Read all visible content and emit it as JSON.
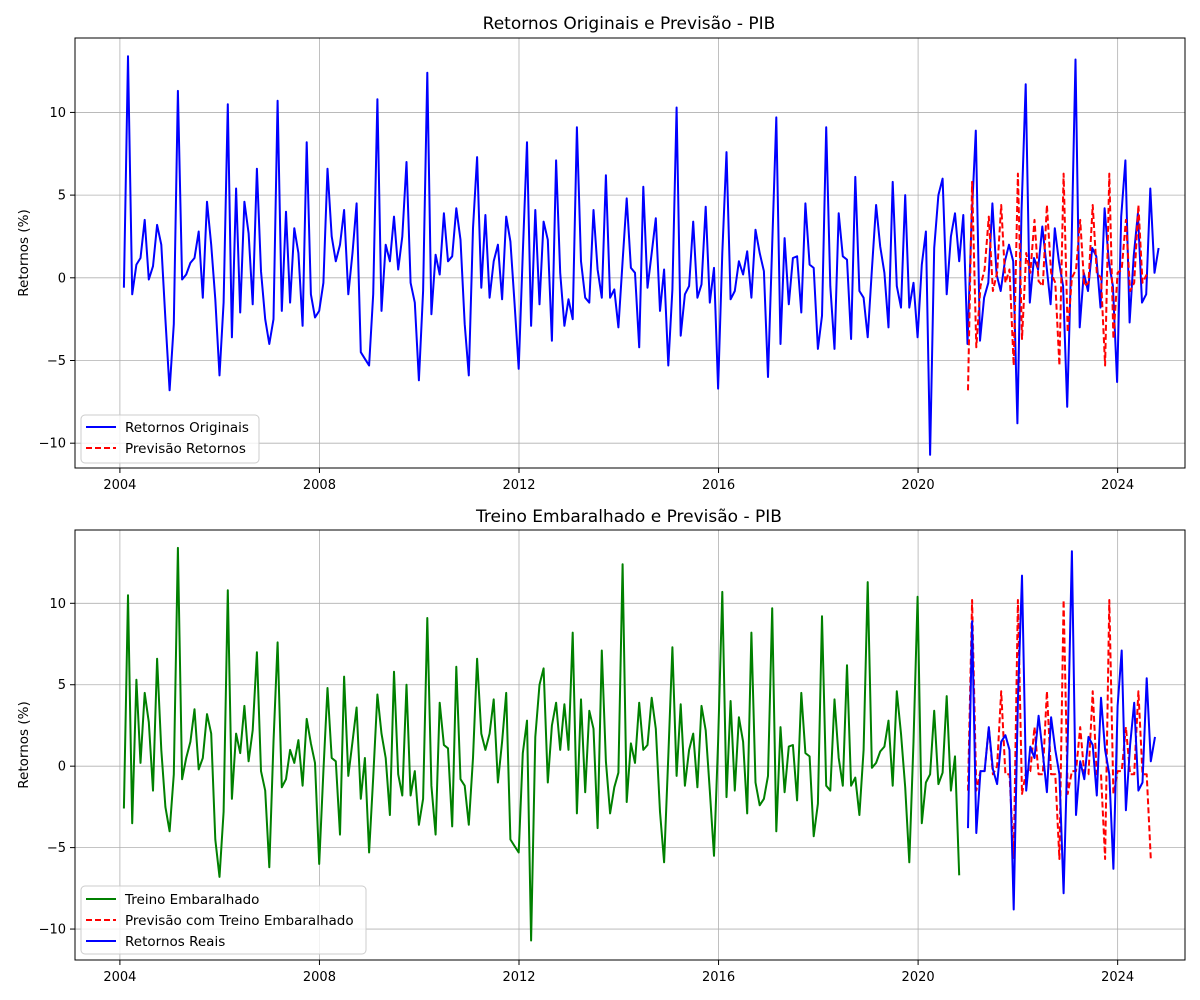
{
  "chart_data": [
    {
      "type": "line",
      "title": "Retornos Originais e Previsão - PIB",
      "xlabel": "",
      "ylabel": "Retornos (%)",
      "xlim": [
        2003.1,
        2025.35
      ],
      "ylim": [
        -11.5,
        14.5
      ],
      "x_ticks": [
        2004,
        2008,
        2012,
        2016,
        2020,
        2024
      ],
      "x_tick_labels": [
        "2004",
        "2008",
        "2012",
        "2016",
        "2020",
        "2024"
      ],
      "y_ticks": [
        -10,
        -5,
        0,
        5,
        10
      ],
      "y_tick_labels": [
        "−10",
        "−5",
        "0",
        "5",
        "10"
      ],
      "grid": true,
      "legend_position": "lower-left",
      "series": [
        {
          "name": "Retornos Originais",
          "color": "#0000ff",
          "style": "solid",
          "x_start": 2004.08,
          "x_step": 0.0833,
          "values": [
            -0.6,
            13.4,
            -1.0,
            0.8,
            1.2,
            3.5,
            -0.1,
            0.7,
            3.2,
            2.0,
            -2.5,
            -6.8,
            -2.8,
            11.3,
            -0.1,
            0.2,
            0.9,
            1.2,
            2.8,
            -1.2,
            4.6,
            2.0,
            -1.3,
            -5.9,
            -1.5,
            10.5,
            -3.6,
            5.4,
            -2.1,
            4.6,
            2.7,
            -1.6,
            6.6,
            0.4,
            -2.5,
            -4.0,
            -2.5,
            10.7,
            -2.0,
            4.0,
            -1.5,
            3.0,
            1.5,
            -2.9,
            8.2,
            -1.0,
            -2.4,
            -2.0,
            -0.3,
            6.6,
            2.5,
            1.0,
            2.0,
            4.1,
            -1.0,
            1.5,
            4.5,
            -4.5,
            -4.9,
            -5.3,
            -1.0,
            10.8,
            -2.0,
            2.0,
            1.0,
            3.7,
            0.5,
            2.5,
            7.0,
            -0.3,
            -1.5,
            -6.2,
            -0.8,
            12.4,
            -2.2,
            1.4,
            0.2,
            3.9,
            1.0,
            1.3,
            4.2,
            2.3,
            -2.8,
            -5.9,
            3.0,
            7.3,
            -0.6,
            3.8,
            -1.2,
            1.0,
            2.0,
            -1.3,
            3.7,
            2.2,
            -1.5,
            -5.5,
            1.5,
            8.2,
            -2.9,
            4.1,
            -1.6,
            3.4,
            2.3,
            -3.8,
            7.1,
            0.3,
            -2.9,
            -1.3,
            -2.5,
            9.1,
            1.0,
            -1.2,
            -1.5,
            4.1,
            0.5,
            -1.2,
            6.2,
            -1.2,
            -0.7,
            -3.0,
            1.0,
            4.8,
            0.6,
            0.3,
            -4.2,
            5.5,
            -0.6,
            1.5,
            3.6,
            -2.0,
            0.5,
            -5.3,
            -0.7,
            10.3,
            -3.5,
            -1.0,
            -0.5,
            3.4,
            -1.2,
            -0.4,
            4.3,
            -1.5,
            0.6,
            -6.7,
            1.5,
            7.6,
            -1.3,
            -0.8,
            1.0,
            0.2,
            1.6,
            -1.2,
            2.9,
            1.5,
            0.4,
            -6.0,
            2.0,
            9.7,
            -4.0,
            2.4,
            -1.6,
            1.2,
            1.3,
            -2.1,
            4.5,
            0.8,
            0.6,
            -4.3,
            -2.3,
            9.1,
            -0.5,
            -4.3,
            3.9,
            1.3,
            1.1,
            -3.7,
            6.1,
            -0.8,
            -1.2,
            -3.6,
            0.5,
            4.4,
            1.9,
            0.3,
            -3.0,
            5.8,
            -0.5,
            -1.8,
            5.0,
            -1.8,
            -0.3,
            -3.6,
            0.8,
            2.8,
            -10.7,
            1.8,
            5.0,
            6.0,
            -1.0,
            2.5,
            3.9,
            1.0,
            3.8,
            -4.0,
            3.5,
            8.9,
            -3.8,
            -1.2,
            -0.3,
            4.5,
            0.2,
            -0.8,
            1.0,
            2.0,
            1.0,
            -8.8,
            4.0,
            11.7,
            -1.5,
            1.2,
            0.5,
            3.1,
            0.8,
            -1.6,
            3.0,
            1.0,
            -0.5,
            -7.8,
            1.5,
            13.2,
            -3.0,
            0.3,
            -0.8,
            1.8,
            1.3,
            -1.8,
            4.2,
            1.0,
            -0.5,
            -6.3,
            3.7,
            7.1,
            -2.7,
            1.3,
            3.9,
            -1.5,
            -1.0,
            5.4,
            0.3,
            1.8
          ]
        },
        {
          "name": "Previsão Retornos",
          "color": "#ff0000",
          "style": "dashed",
          "x_start": 2021.0,
          "x_step": 0.0833,
          "values": [
            -6.8,
            5.8,
            -4.2,
            -0.5,
            0.5,
            3.7,
            -0.8,
            0.3,
            4.4,
            -0.3,
            0.5,
            -5.3,
            6.3,
            -3.7,
            1.5,
            0.3,
            3.5,
            -0.2,
            -0.5,
            4.4,
            0.3,
            -0.3,
            -5.3,
            6.3,
            -3.3,
            0.0,
            0.5,
            3.5,
            -0.5,
            -0.3,
            4.4,
            0.3,
            0.0,
            -5.3,
            6.3,
            -3.7,
            0.3,
            0.5,
            3.5,
            -0.8,
            -0.3,
            4.4,
            -0.3,
            0.2
          ]
        }
      ]
    },
    {
      "type": "line",
      "title": "Treino Embaralhado e Previsão - PIB",
      "xlabel": "",
      "ylabel": "Retornos (%)",
      "xlim": [
        2003.1,
        2025.35
      ],
      "ylim": [
        -11.9,
        14.5
      ],
      "x_ticks": [
        2004,
        2008,
        2012,
        2016,
        2020,
        2024
      ],
      "x_tick_labels": [
        "2004",
        "2008",
        "2012",
        "2016",
        "2020",
        "2024"
      ],
      "y_ticks": [
        -10,
        -5,
        0,
        5,
        10
      ],
      "y_tick_labels": [
        "−10",
        "−5",
        "0",
        "5",
        "10"
      ],
      "grid": true,
      "legend_position": "lower-left",
      "series": [
        {
          "name": "Treino Embaralhado",
          "color": "#008000",
          "style": "solid",
          "x_start": 2004.08,
          "x_step": 0.0833,
          "values": [
            -2.6,
            10.5,
            -3.5,
            5.3,
            0.2,
            4.5,
            2.7,
            -1.5,
            6.6,
            1.0,
            -2.5,
            -4.0,
            -0.5,
            13.4,
            -0.8,
            0.5,
            1.5,
            3.5,
            -0.2,
            0.5,
            3.2,
            2.0,
            -4.5,
            -6.8,
            -2.8,
            10.8,
            -2.0,
            2.0,
            0.8,
            3.7,
            0.3,
            2.2,
            7.0,
            -0.3,
            -1.5,
            -6.2,
            1.5,
            7.6,
            -1.3,
            -0.8,
            1.0,
            0.2,
            1.6,
            -1.2,
            2.9,
            1.4,
            0.2,
            -6.0,
            -0.3,
            4.8,
            0.5,
            0.3,
            -4.2,
            5.5,
            -0.6,
            1.5,
            3.6,
            -2.0,
            0.5,
            -5.3,
            -0.7,
            4.4,
            2.0,
            0.5,
            -3.0,
            5.8,
            -0.5,
            -1.8,
            5.0,
            -1.8,
            -0.3,
            -3.6,
            -2.0,
            9.1,
            -1.2,
            -4.2,
            3.9,
            1.3,
            1.1,
            -3.7,
            6.1,
            -0.8,
            -1.2,
            -3.6,
            0.5,
            6.6,
            2.0,
            1.0,
            2.0,
            4.1,
            -1.0,
            1.5,
            4.5,
            -4.5,
            -4.9,
            -5.3,
            0.8,
            2.8,
            -10.7,
            1.8,
            5.0,
            6.0,
            -1.0,
            2.5,
            3.9,
            1.0,
            3.8,
            1.0,
            8.2,
            -2.9,
            4.1,
            -1.6,
            3.4,
            2.3,
            -3.8,
            7.1,
            0.3,
            -2.9,
            -1.3,
            -0.4,
            12.4,
            -2.2,
            1.4,
            0.2,
            3.9,
            1.0,
            1.3,
            4.2,
            2.3,
            -2.8,
            -5.9,
            0.6,
            7.3,
            -0.6,
            3.8,
            -1.2,
            1.0,
            2.0,
            -1.3,
            3.7,
            2.2,
            -1.5,
            -5.5,
            1.5,
            10.7,
            -1.9,
            4.0,
            -1.5,
            3.0,
            1.5,
            -2.9,
            8.2,
            -1.0,
            -2.4,
            -2.0,
            -0.6,
            9.7,
            -4.0,
            2.4,
            -1.6,
            1.2,
            1.3,
            -2.1,
            4.5,
            0.8,
            0.6,
            -4.3,
            -2.3,
            9.2,
            -1.2,
            -1.5,
            4.1,
            0.5,
            -1.2,
            6.2,
            -1.2,
            -0.7,
            -3.0,
            1.0,
            11.3,
            -0.1,
            0.2,
            0.9,
            1.2,
            2.8,
            -1.2,
            4.6,
            2.0,
            -1.3,
            -5.9,
            1.5,
            10.4,
            -3.5,
            -1.0,
            -0.5,
            3.4,
            -1.1,
            -0.4,
            4.3,
            -1.5,
            0.6,
            -6.7
          ]
        },
        {
          "name": "Previsão com Treino Embaralhado",
          "color": "#ff0000",
          "style": "dashed",
          "x_start": 2021.0,
          "x_step": 0.0833,
          "values": [
            -1.5,
            10.2,
            -1.5,
            -0.3,
            -0.3,
            2.4,
            -0.5,
            0.0,
            4.6,
            -0.5,
            -0.5,
            -5.7,
            10.2,
            -1.7,
            -0.3,
            -0.3,
            2.4,
            -0.5,
            -0.5,
            4.6,
            -0.5,
            -0.5,
            -5.7,
            10.2,
            -1.7,
            -0.3,
            -0.3,
            2.4,
            -0.5,
            -0.5,
            4.6,
            -0.5,
            -0.5,
            -5.7,
            10.2,
            -1.7,
            -0.3,
            -0.3,
            2.4,
            -0.5,
            -0.5,
            4.6,
            -0.5,
            -0.5,
            -5.7
          ]
        },
        {
          "name": "Retornos Reais",
          "color": "#0000ff",
          "style": "solid",
          "x_start": 2021.0,
          "x_step": 0.0833,
          "values": [
            -3.8,
            8.9,
            -4.1,
            -0.3,
            -0.3,
            2.4,
            -0.2,
            -1.1,
            1.5,
            1.9,
            1.0,
            -8.8,
            4.0,
            11.7,
            -1.5,
            1.2,
            0.5,
            3.1,
            0.8,
            -1.6,
            3.0,
            1.0,
            -0.5,
            -7.8,
            1.5,
            13.2,
            -3.0,
            0.3,
            -0.8,
            1.8,
            1.3,
            -1.8,
            4.2,
            1.0,
            -0.5,
            -6.3,
            3.7,
            7.1,
            -2.7,
            1.3,
            3.9,
            -1.5,
            -1.0,
            5.4,
            0.3,
            1.8
          ]
        }
      ]
    }
  ]
}
